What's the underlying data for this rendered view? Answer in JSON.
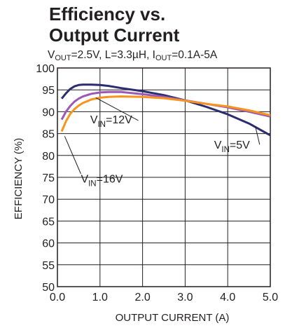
{
  "chart_data": {
    "type": "line",
    "title_line1": "Efficiency vs.",
    "title_line2": "Output Current",
    "subtitle": {
      "vout_label": "V",
      "vout_sub": "OUT",
      "vout_rest": "=2.5V, L=3.3µH, I",
      "iout_sub": "OUT",
      "iout_rest": "=0.1A-5A"
    },
    "xlabel": "OUTPUT CURRENT (A)",
    "ylabel": "EFFICIENCY (%)",
    "xlim": [
      0,
      5
    ],
    "ylim": [
      50,
      100
    ],
    "grid": true,
    "x_ticks": [
      {
        "value": 0,
        "label": "0.0"
      },
      {
        "value": 1,
        "label": "1.0"
      },
      {
        "value": 2,
        "label": "2.0"
      },
      {
        "value": 3,
        "label": "3.0"
      },
      {
        "value": 4,
        "label": "4.0"
      },
      {
        "value": 5,
        "label": "5.0"
      }
    ],
    "y_ticks": [
      {
        "value": 50,
        "label": "50"
      },
      {
        "value": 55,
        "label": "55"
      },
      {
        "value": 60,
        "label": "60"
      },
      {
        "value": 65,
        "label": "65"
      },
      {
        "value": 70,
        "label": "70"
      },
      {
        "value": 75,
        "label": "75"
      },
      {
        "value": 80,
        "label": "80"
      },
      {
        "value": 85,
        "label": "85"
      },
      {
        "value": 90,
        "label": "90"
      },
      {
        "value": 95,
        "label": "95"
      },
      {
        "value": 100,
        "label": "100"
      }
    ],
    "series": [
      {
        "name": "VIN=5V",
        "label_main": "V",
        "label_sub": "IN",
        "label_rest": "=5V",
        "color": "#2b2d6e",
        "x": [
          0.1,
          0.2,
          0.3,
          0.4,
          0.5,
          0.6,
          0.8,
          1.0,
          1.2,
          1.5,
          2.0,
          2.5,
          3.0,
          3.5,
          4.0,
          4.5,
          5.0
        ],
        "y": [
          93.0,
          94.2,
          95.2,
          95.8,
          96.1,
          96.2,
          96.2,
          96.1,
          95.9,
          95.4,
          94.7,
          93.8,
          92.6,
          91.1,
          89.4,
          87.3,
          84.6
        ]
      },
      {
        "name": "VIN=12V",
        "label_main": "V",
        "label_sub": "IN",
        "label_rest": "=12V",
        "color": "#9b59b6",
        "x": [
          0.1,
          0.2,
          0.3,
          0.4,
          0.5,
          0.6,
          0.8,
          1.0,
          1.2,
          1.5,
          2.0,
          2.5,
          3.0,
          3.5,
          4.0,
          4.5,
          5.0
        ],
        "y": [
          88.2,
          90.0,
          91.3,
          92.3,
          93.0,
          93.5,
          94.1,
          94.4,
          94.5,
          94.5,
          94.0,
          93.4,
          92.6,
          91.8,
          91.0,
          90.0,
          88.9
        ]
      },
      {
        "name": "VIN=16V",
        "label_main": "V",
        "label_sub": "IN",
        "label_rest": "=16V",
        "color": "#f7941d",
        "x": [
          0.1,
          0.2,
          0.3,
          0.4,
          0.5,
          0.6,
          0.8,
          1.0,
          1.2,
          1.5,
          2.0,
          2.5,
          3.0,
          3.5,
          4.0,
          4.5,
          5.0
        ],
        "y": [
          85.5,
          87.8,
          89.5,
          90.6,
          91.4,
          92.0,
          92.8,
          93.2,
          93.4,
          93.5,
          93.4,
          93.1,
          92.5,
          91.8,
          91.2,
          90.3,
          89.2
        ]
      }
    ],
    "annotations": [
      {
        "series": 1,
        "x": 1.9,
        "y": 88.0,
        "anchor_x": 0.9,
        "anchor_y": 93.2,
        "text_x": 0.77,
        "text_y": 87.3
      },
      {
        "series": 0,
        "x": 4.75,
        "y": 82.5,
        "anchor_x": 4.65,
        "anchor_y": 86.6,
        "text_x": 3.68,
        "text_y": 81.6
      },
      {
        "series": 2,
        "x": 0.55,
        "y": 75.8,
        "anchor_x": 0.17,
        "anchor_y": 84.4,
        "text_x": 0.55,
        "text_y": 73.8
      }
    ]
  }
}
